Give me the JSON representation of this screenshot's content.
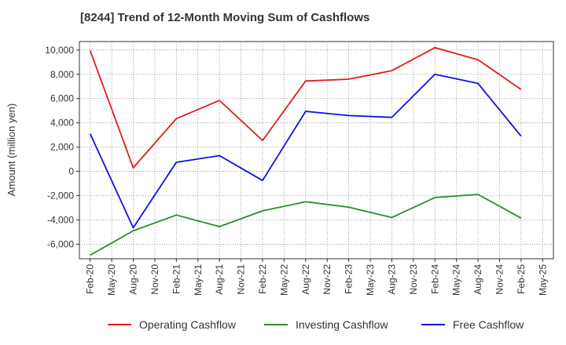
{
  "chart_data": {
    "type": "line",
    "title": "[8244]  Trend of 12-Month Moving Sum of Cashflows",
    "xlabel": "",
    "ylabel": "Amount (million yen)",
    "x": [
      "Feb-20",
      "May-20",
      "Aug-20",
      "Nov-20",
      "Feb-21",
      "May-21",
      "Aug-21",
      "Nov-21",
      "Feb-22",
      "May-22",
      "Aug-22",
      "Nov-22",
      "Feb-23",
      "May-23",
      "Aug-23",
      "Nov-23",
      "Feb-24",
      "May-24",
      "Aug-24",
      "Nov-24",
      "Feb-25",
      "May-25"
    ],
    "ylim": [
      -7200,
      10700
    ],
    "yticks": [
      -6000,
      -4000,
      -2000,
      0,
      2000,
      4000,
      6000,
      8000,
      10000
    ],
    "ytick_labels": [
      "-6,000",
      "-4,000",
      "-2,000",
      "0",
      "2,000",
      "4,000",
      "6,000",
      "8,000",
      "10,000"
    ],
    "grid": true,
    "legend_position": "bottom",
    "series": [
      {
        "name": "Operating Cashflow",
        "color": "#e41a1c",
        "values": [
          9950,
          null,
          300,
          null,
          4350,
          null,
          5850,
          null,
          2550,
          null,
          7450,
          null,
          7600,
          null,
          8300,
          null,
          10200,
          null,
          9200,
          null,
          6750,
          null
        ]
      },
      {
        "name": "Investing Cashflow",
        "color": "#2e8b2e",
        "values": [
          -6900,
          null,
          -4900,
          null,
          -3600,
          null,
          -4550,
          null,
          -3250,
          null,
          -2500,
          null,
          -2950,
          null,
          -3800,
          null,
          -2150,
          null,
          -1900,
          null,
          -3850,
          null
        ]
      },
      {
        "name": "Free Cashflow",
        "color": "#1010e0",
        "values": [
          3100,
          null,
          -4650,
          null,
          750,
          null,
          1300,
          null,
          -750,
          null,
          4950,
          null,
          4600,
          null,
          4450,
          null,
          8000,
          null,
          7250,
          null,
          2900,
          null
        ]
      }
    ]
  }
}
